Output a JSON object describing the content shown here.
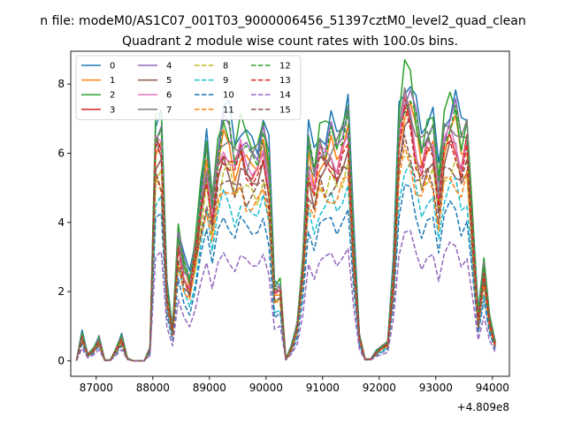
{
  "figure": {
    "suptitle": "n file: modeM0/AS1C07_001T03_9000006456_51397cztM0_level2_quad_clean",
    "title": "Quadrant 2 module wise count rates with 100.0s bins."
  },
  "chart_data": {
    "type": "line",
    "title": "Quadrant 2 module wise count rates with 100.0s bins.",
    "xlabel": "",
    "ylabel": "",
    "x_offset_label": "+4.809e8",
    "xlim": [
      86550,
      94300
    ],
    "ylim": [
      -0.45,
      8.95
    ],
    "xticks": [
      87000,
      88000,
      89000,
      90000,
      91000,
      92000,
      93000,
      94000
    ],
    "xtick_labels": [
      "87000",
      "88000",
      "89000",
      "90000",
      "91000",
      "92000",
      "93000",
      "94000"
    ],
    "yticks": [
      0,
      2,
      4,
      6,
      8
    ],
    "ytick_labels": [
      "0",
      "2",
      "4",
      "6",
      "8"
    ],
    "grid": false,
    "legend_position": "top-left",
    "legend_columns": 4,
    "x": [
      86650,
      86750,
      86850,
      86950,
      87050,
      87150,
      87250,
      87350,
      87450,
      87550,
      87650,
      87750,
      87850,
      87950,
      88050,
      88150,
      88250,
      88350,
      88450,
      88550,
      88650,
      88750,
      88850,
      88950,
      89050,
      89150,
      89250,
      89350,
      89450,
      89550,
      89650,
      89750,
      89850,
      89950,
      90050,
      90150,
      90250,
      90350,
      90450,
      90550,
      90650,
      90750,
      90850,
      90950,
      91050,
      91150,
      91250,
      91350,
      91450,
      91550,
      91650,
      91750,
      91850,
      91950,
      92050,
      92150,
      92250,
      92350,
      92450,
      92550,
      92650,
      92750,
      92850,
      92950,
      93050,
      93150,
      93250,
      93350,
      93450,
      93550,
      93650,
      93750,
      93850,
      93950,
      94050
    ],
    "base_profile": [
      0,
      0.85,
      0.2,
      0.35,
      0.7,
      0.02,
      0.02,
      0.35,
      0.75,
      0.08,
      0,
      0,
      0,
      0.4,
      6.95,
      7.0,
      2.3,
      1.0,
      3.85,
      2.9,
      2.5,
      3.55,
      5.0,
      6.5,
      5.0,
      6.35,
      7.0,
      7.0,
      6.4,
      6.75,
      6.5,
      6.55,
      6.4,
      6.85,
      6.0,
      2.3,
      2.3,
      0.05,
      0.45,
      1.15,
      3.0,
      6.45,
      5.9,
      6.85,
      6.5,
      7.0,
      6.7,
      6.95,
      7.35,
      3.7,
      0.8,
      0.05,
      0.05,
      0.3,
      0.45,
      0.55,
      2.8,
      7.5,
      8.45,
      8.05,
      7.3,
      6.6,
      6.95,
      6.95,
      5.55,
      7.3,
      7.4,
      7.45,
      6.8,
      7.15,
      4.1,
      1.4,
      3.1,
      1.3,
      0.55
    ],
    "series": [
      {
        "name": "0",
        "color": "#1f77b4",
        "dash": false,
        "scale": 1.0,
        "phase": 0.4
      },
      {
        "name": "1",
        "color": "#ff7f0e",
        "dash": false,
        "scale": 0.88,
        "phase": 1.1
      },
      {
        "name": "2",
        "color": "#2ca02c",
        "dash": false,
        "scale": 0.98,
        "phase": 2.3
      },
      {
        "name": "3",
        "color": "#d62728",
        "dash": false,
        "scale": 0.86,
        "phase": 3.0
      },
      {
        "name": "4",
        "color": "#9467bd",
        "dash": false,
        "scale": 0.94,
        "phase": 0.9
      },
      {
        "name": "5",
        "color": "#8c564b",
        "dash": false,
        "scale": 0.8,
        "phase": 1.7
      },
      {
        "name": "6",
        "color": "#e377c2",
        "dash": false,
        "scale": 0.87,
        "phase": 2.6
      },
      {
        "name": "7",
        "color": "#7f7f7f",
        "dash": false,
        "scale": 0.91,
        "phase": 4.0
      },
      {
        "name": "8",
        "color": "#bcbd22",
        "dash": true,
        "scale": 0.76,
        "phase": 0.2
      },
      {
        "name": "9",
        "color": "#17becf",
        "dash": true,
        "scale": 0.66,
        "phase": 1.4
      },
      {
        "name": "10",
        "color": "#1f77b4",
        "dash": true,
        "scale": 0.58,
        "phase": 2.1
      },
      {
        "name": "11",
        "color": "#ff7f0e",
        "dash": true,
        "scale": 0.71,
        "phase": 3.3
      },
      {
        "name": "12",
        "color": "#2ca02c",
        "dash": true,
        "scale": 0.93,
        "phase": 0.6
      },
      {
        "name": "13",
        "color": "#d62728",
        "dash": true,
        "scale": 0.83,
        "phase": 2.9
      },
      {
        "name": "14",
        "color": "#9467bd",
        "dash": true,
        "scale": 0.43,
        "phase": 1.9
      },
      {
        "name": "15",
        "color": "#8c564b",
        "dash": true,
        "scale": 0.75,
        "phase": 3.7
      }
    ]
  }
}
